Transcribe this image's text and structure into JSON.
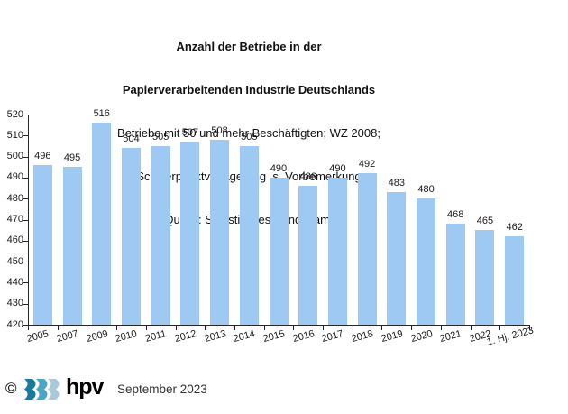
{
  "header": {
    "title_line1": "Anzahl der Betriebe in der",
    "title_line2": "Papierverarbeitenden Industrie Deutschlands",
    "subtitle_line1": "Betriebe mit 50 und mehr Beschäftigten; WZ 2008;",
    "subtitle_line2": "Schwerpunktverlagerung  s. Vorbemerkung",
    "subtitle_line3": "Quelle: Statistisches Bundesamt"
  },
  "chart_data": {
    "type": "bar",
    "title": "Anzahl der Betriebe in der Papierverarbeitenden Industrie Deutschlands",
    "subtitle": [
      "Betriebe mit 50 und mehr Beschäftigten; WZ 2008;",
      "Schwerpunktverlagerung  s. Vorbemerkung",
      "Quelle: Statistisches Bundesamt"
    ],
    "categories": [
      "2005",
      "2007",
      "2009",
      "2010",
      "2011",
      "2012",
      "2013",
      "2014",
      "2015",
      "2016",
      "2017",
      "2018",
      "2019",
      "2020",
      "2021",
      "2022",
      "1. Hj. 2023"
    ],
    "values": [
      496,
      495,
      516,
      504,
      505,
      507,
      508,
      505,
      490,
      486,
      490,
      492,
      483,
      480,
      468,
      465,
      462
    ],
    "ylim": [
      420,
      520
    ],
    "ytick_step": 10,
    "yticks": [
      420,
      430,
      440,
      450,
      460,
      470,
      480,
      490,
      500,
      510,
      520
    ],
    "grid": false,
    "legend": false,
    "data_labels": true,
    "bar_color": "#9DC9F2"
  },
  "footer": {
    "copyright_symbol": "©",
    "logo_text": "hpv",
    "logo_chevron_colors": [
      "#1A7A9C",
      "#4AA5C6",
      "#A9C9DB"
    ],
    "date_label": "September 2023"
  }
}
